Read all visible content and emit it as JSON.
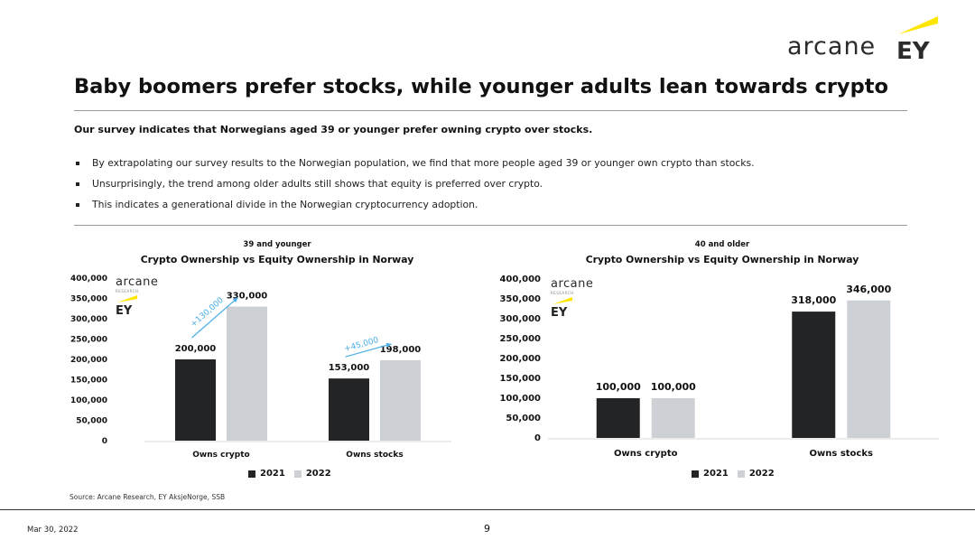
{
  "brand": {
    "text": "arcane",
    "partner": "EY",
    "accent_color": "#ffe600"
  },
  "title": "Baby boomers prefer stocks, while younger adults lean towards crypto",
  "subtitle": "Our survey indicates that Norwegians aged 39 or younger prefer owning crypto over stocks.",
  "bullets": [
    "By extrapolating our survey results to the Norwegian population, we find that more people aged 39 or younger own crypto than stocks.",
    "Unsurprisingly, the trend among older adults still shows that equity is preferred over crypto.",
    "This indicates a generational divide in the Norwegian cryptocurrency adoption."
  ],
  "mini_logo": {
    "text": "arcane",
    "sub": "RESEARCH",
    "partner": "EY"
  },
  "chart_data": [
    {
      "type": "bar",
      "group_label": "39 and younger",
      "title": "Crypto Ownership vs Equity Ownership in Norway",
      "categories": [
        "Owns crypto",
        "Owns stocks"
      ],
      "series": [
        {
          "name": "2021",
          "values": [
            200000,
            153000
          ],
          "color": "#222426"
        },
        {
          "name": "2022",
          "values": [
            330000,
            198000
          ],
          "color": "#cdd1d6"
        }
      ],
      "data_labels": [
        [
          "200,000",
          "153,000"
        ],
        [
          "330,000",
          "198,000"
        ]
      ],
      "yticks": [
        "0",
        "50,000",
        "100,000",
        "150,000",
        "200,000",
        "250,000",
        "300,000",
        "350,000",
        "400,000"
      ],
      "ylim": [
        0,
        400000
      ],
      "annotations": [
        {
          "category": "Owns crypto",
          "text": "+130,000"
        },
        {
          "category": "Owns stocks",
          "text": "+45,000"
        }
      ],
      "annotation_color": "#4aaee8",
      "legend": [
        "2021",
        "2022"
      ],
      "legend_placement": "bottom"
    },
    {
      "type": "bar",
      "group_label": "40 and older",
      "title": "Crypto Ownership vs Equity Ownership in Norway",
      "categories": [
        "Owns crypto",
        "Owns stocks"
      ],
      "series": [
        {
          "name": "2021",
          "values": [
            100000,
            318000
          ],
          "color": "#222426"
        },
        {
          "name": "2022",
          "values": [
            100000,
            346000
          ],
          "color": "#cdd1d6"
        }
      ],
      "data_labels": [
        [
          "100,000",
          "318,000"
        ],
        [
          "100,000",
          "346,000"
        ]
      ],
      "yticks": [
        "0",
        "50,000",
        "100,000",
        "150,000",
        "200,000",
        "250,000",
        "300,000",
        "350,000",
        "400,000"
      ],
      "ylim": [
        0,
        400000
      ],
      "annotations": [],
      "legend": [
        "2021",
        "2022"
      ],
      "legend_placement": "bottom"
    }
  ],
  "source": "Source: Arcane Research, EY AksjeNorge, SSB",
  "footer": {
    "date": "Mar 30, 2022",
    "page": "9"
  }
}
